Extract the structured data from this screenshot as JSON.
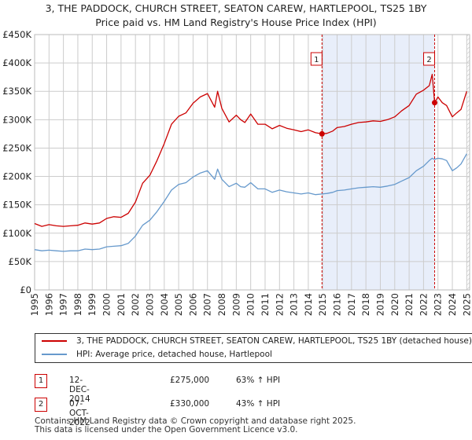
{
  "chart_data": {
    "type": "line",
    "title": "3, THE PADDOCK, CHURCH STREET, SEATON CAREW, HARTLEPOOL, TS25 1BY",
    "subtitle": "Price paid vs. HM Land Registry's House Price Index (HPI)",
    "x_ticks": [
      "1995",
      "1996",
      "1997",
      "1998",
      "1999",
      "2000",
      "2001",
      "2002",
      "2003",
      "2004",
      "2005",
      "2006",
      "2007",
      "2008",
      "2009",
      "2010",
      "2011",
      "2012",
      "2013",
      "2014",
      "2015",
      "2016",
      "2017",
      "2018",
      "2019",
      "2020",
      "2021",
      "2022",
      "2023",
      "2024",
      "2025"
    ],
    "y_ticks": [
      "£0",
      "£50K",
      "£100K",
      "£150K",
      "£200K",
      "£250K",
      "£300K",
      "£350K",
      "£400K",
      "£450K"
    ],
    "xlim": [
      1995,
      2025.2
    ],
    "ylim": [
      0,
      450000
    ],
    "series": [
      {
        "name": "3, THE PADDOCK, CHURCH STREET, SEATON CAREW, HARTLEPOOL, TS25 1BY (detached house)",
        "color": "#cc0000",
        "x": [
          1995.0,
          1995.5,
          1996.0,
          1996.5,
          1997.0,
          1997.5,
          1998.0,
          1998.5,
          1999.0,
          1999.5,
          2000.0,
          2000.5,
          2001.0,
          2001.5,
          2002.0,
          2002.5,
          2003.0,
          2003.5,
          2004.0,
          2004.5,
          2005.0,
          2005.5,
          2006.0,
          2006.5,
          2007.0,
          2007.5,
          2007.7,
          2008.0,
          2008.5,
          2009.0,
          2009.3,
          2009.6,
          2010.0,
          2010.5,
          2011.0,
          2011.5,
          2012.0,
          2012.5,
          2013.0,
          2013.5,
          2014.0,
          2014.5,
          2014.95,
          2015.3,
          2015.7,
          2016.0,
          2016.5,
          2017.0,
          2017.5,
          2018.0,
          2018.5,
          2019.0,
          2019.5,
          2020.0,
          2020.5,
          2021.0,
          2021.5,
          2022.0,
          2022.4,
          2022.6,
          2022.77,
          2023.0,
          2023.3,
          2023.6,
          2024.0,
          2024.3,
          2024.6,
          2025.0
        ],
        "values": [
          117000,
          112000,
          115000,
          113000,
          112000,
          113000,
          114000,
          118000,
          116000,
          118000,
          126000,
          129000,
          128000,
          135000,
          155000,
          188000,
          202000,
          228000,
          258000,
          292000,
          306000,
          312000,
          329000,
          340000,
          346000,
          322000,
          350000,
          320000,
          296000,
          308000,
          300000,
          295000,
          310000,
          292000,
          292000,
          284000,
          290000,
          285000,
          282000,
          279000,
          282000,
          277000,
          275000,
          276000,
          280000,
          286000,
          288000,
          292000,
          295000,
          296000,
          298000,
          297000,
          300000,
          305000,
          316000,
          325000,
          345000,
          352000,
          360000,
          380000,
          330000,
          340000,
          330000,
          325000,
          305000,
          312000,
          318000,
          350000
        ]
      },
      {
        "name": "HPI: Average price, detached house, Hartlepool",
        "color": "#6699cc",
        "x": [
          1995.0,
          1995.5,
          1996.0,
          1996.5,
          1997.0,
          1997.5,
          1998.0,
          1998.5,
          1999.0,
          1999.5,
          2000.0,
          2000.5,
          2001.0,
          2001.5,
          2002.0,
          2002.5,
          2003.0,
          2003.5,
          2004.0,
          2004.5,
          2005.0,
          2005.5,
          2006.0,
          2006.5,
          2007.0,
          2007.5,
          2007.7,
          2008.0,
          2008.5,
          2009.0,
          2009.3,
          2009.6,
          2010.0,
          2010.5,
          2011.0,
          2011.5,
          2012.0,
          2012.5,
          2013.0,
          2013.5,
          2014.0,
          2014.5,
          2014.95,
          2015.3,
          2015.7,
          2016.0,
          2016.5,
          2017.0,
          2017.5,
          2018.0,
          2018.5,
          2019.0,
          2019.5,
          2020.0,
          2020.5,
          2021.0,
          2021.5,
          2022.0,
          2022.4,
          2022.6,
          2022.77,
          2023.0,
          2023.3,
          2023.6,
          2024.0,
          2024.3,
          2024.6,
          2025.0
        ],
        "values": [
          71000,
          69000,
          70000,
          69000,
          68000,
          69000,
          69000,
          72000,
          71000,
          72000,
          76000,
          77000,
          78000,
          82000,
          95000,
          114000,
          123000,
          138000,
          156000,
          176000,
          186000,
          189000,
          199000,
          206000,
          210000,
          195000,
          213000,
          195000,
          182000,
          188000,
          182000,
          181000,
          189000,
          178000,
          178000,
          172000,
          176000,
          173000,
          171000,
          169000,
          171000,
          168000,
          169000,
          170000,
          172000,
          175000,
          176000,
          178000,
          180000,
          181000,
          182000,
          181000,
          183000,
          186000,
          192000,
          198000,
          210000,
          218000,
          228000,
          232000,
          230000,
          232000,
          231000,
          228000,
          210000,
          215000,
          222000,
          240000
        ]
      }
    ],
    "annotations": [
      {
        "label": "1",
        "x": 2014.95,
        "value": 275000
      },
      {
        "label": "2",
        "x": 2022.77,
        "value": 330000
      }
    ],
    "shaded_range": [
      2014.95,
      2022.77
    ],
    "hatched_after": 2025.0
  },
  "legend": {
    "entries": [
      {
        "label": "3, THE PADDOCK, CHURCH STREET, SEATON CAREW, HARTLEPOOL, TS25 1BY (detached house)",
        "color": "#cc0000"
      },
      {
        "label": "HPI: Average price, detached house, Hartlepool",
        "color": "#6699cc"
      }
    ]
  },
  "sales": [
    {
      "num": "1",
      "date": "12-DEC-2014",
      "price": "£275,000",
      "hpi": "63% ↑ HPI"
    },
    {
      "num": "2",
      "date": "07-OCT-2022",
      "price": "£330,000",
      "hpi": "43% ↑ HPI"
    }
  ],
  "footer": {
    "line1": "Contains HM Land Registry data © Crown copyright and database right 2025.",
    "line2": "This data is licensed under the Open Government Licence v3.0."
  }
}
